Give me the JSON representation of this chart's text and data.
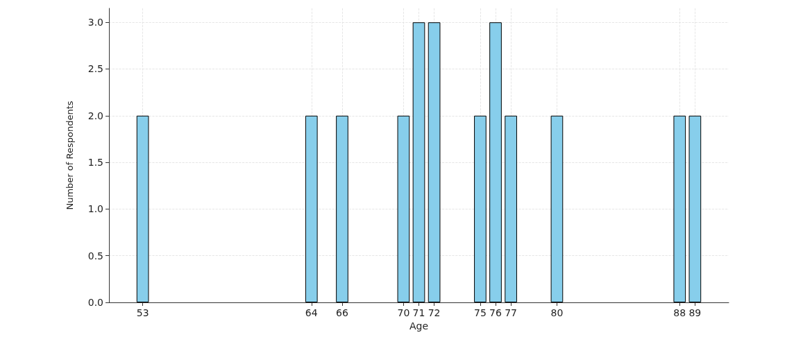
{
  "chart_data": {
    "type": "bar",
    "xlabel": "Age",
    "ylabel": "Number of Respondents",
    "x": [
      53,
      64,
      66,
      70,
      71,
      72,
      75,
      76,
      77,
      80,
      88,
      89
    ],
    "values": [
      2,
      2,
      2,
      2,
      3,
      3,
      2,
      3,
      2,
      2,
      2,
      2
    ],
    "color": "#87ceeb",
    "xlim": [
      50.8,
      91.2
    ],
    "xticks": [
      53,
      64,
      66,
      70,
      71,
      72,
      75,
      76,
      77,
      80,
      88,
      89
    ],
    "ylim": [
      0,
      3.15
    ],
    "yticks": [
      {
        "value": 0,
        "label": "0.0"
      },
      0.5,
      {
        "value": 1,
        "label": "1.0"
      },
      1.5,
      {
        "value": 2,
        "label": "2.0"
      },
      2.5,
      {
        "value": 3,
        "label": "3.0"
      }
    ],
    "grid": true
  }
}
